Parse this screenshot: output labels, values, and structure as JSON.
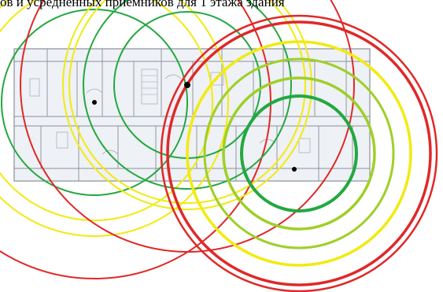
{
  "title": "ов и усредненных приемников для 1 этажа здания",
  "colors": {
    "green": "#23a840",
    "lime": "#9fcf28",
    "yellow": "#f2ea10",
    "red": "#e02828",
    "receiver": "#000000",
    "plan_line": "#8a8f98",
    "plan_paper": "#eef1f5"
  },
  "receivers": [
    {
      "name": "receiver-1"
    },
    {
      "name": "receiver-2"
    },
    {
      "name": "receiver-3"
    }
  ]
}
